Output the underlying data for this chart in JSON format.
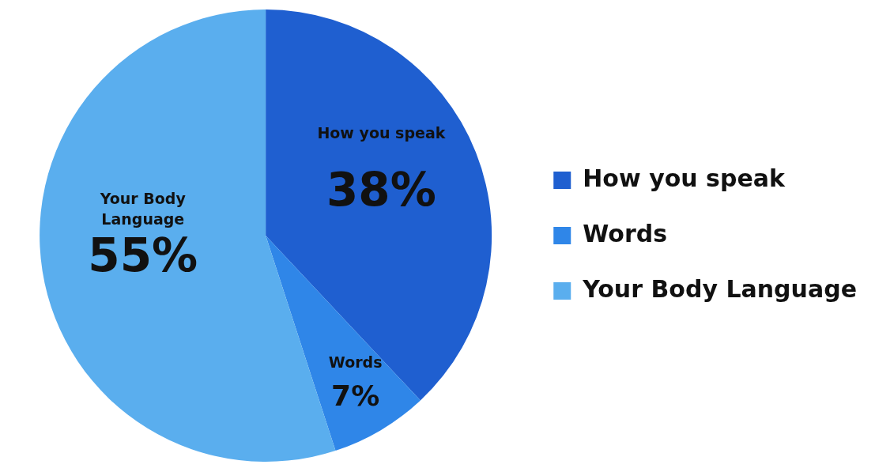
{
  "chart_data": {
    "type": "pie",
    "categories": [
      "How you speak",
      "Words",
      "Your Body Language"
    ],
    "values": [
      38,
      7,
      55
    ],
    "colors": [
      "#1f5fd0",
      "#2f86e8",
      "#5aaeee"
    ],
    "value_labels": [
      "38%",
      "7%",
      "55%"
    ],
    "legend": "right"
  }
}
